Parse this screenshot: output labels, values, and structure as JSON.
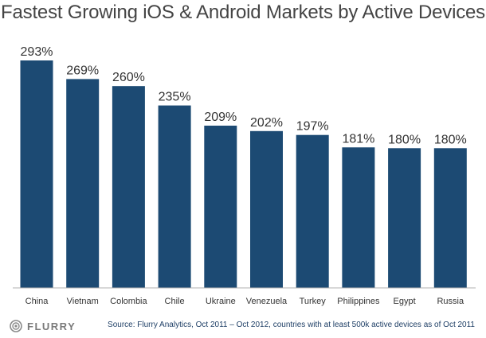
{
  "chart_data": {
    "type": "bar",
    "title": "Fastest Growing iOS & Android Markets by Active Devices",
    "categories": [
      "China",
      "Vietnam",
      "Colombia",
      "Chile",
      "Ukraine",
      "Venezuela",
      "Turkey",
      "Philippines",
      "Egypt",
      "Russia"
    ],
    "values": [
      293,
      269,
      260,
      235,
      209,
      202,
      197,
      181,
      180,
      180
    ],
    "value_labels": [
      "293%",
      "269%",
      "260%",
      "235%",
      "209%",
      "202%",
      "197%",
      "181%",
      "180%",
      "180%"
    ],
    "unit": "%",
    "xlabel": "",
    "ylabel": "",
    "ylim": [
      0,
      293
    ],
    "grid": false,
    "legend": "none",
    "bar_color": "#1c4a73"
  },
  "footer": {
    "logo_text": "FLURRY",
    "logo_icon": "flurry-logo-icon",
    "source": "Source: Flurry Analytics, Oct 2011 – Oct 2012, countries with at least 500k active devices as of Oct 2011"
  }
}
